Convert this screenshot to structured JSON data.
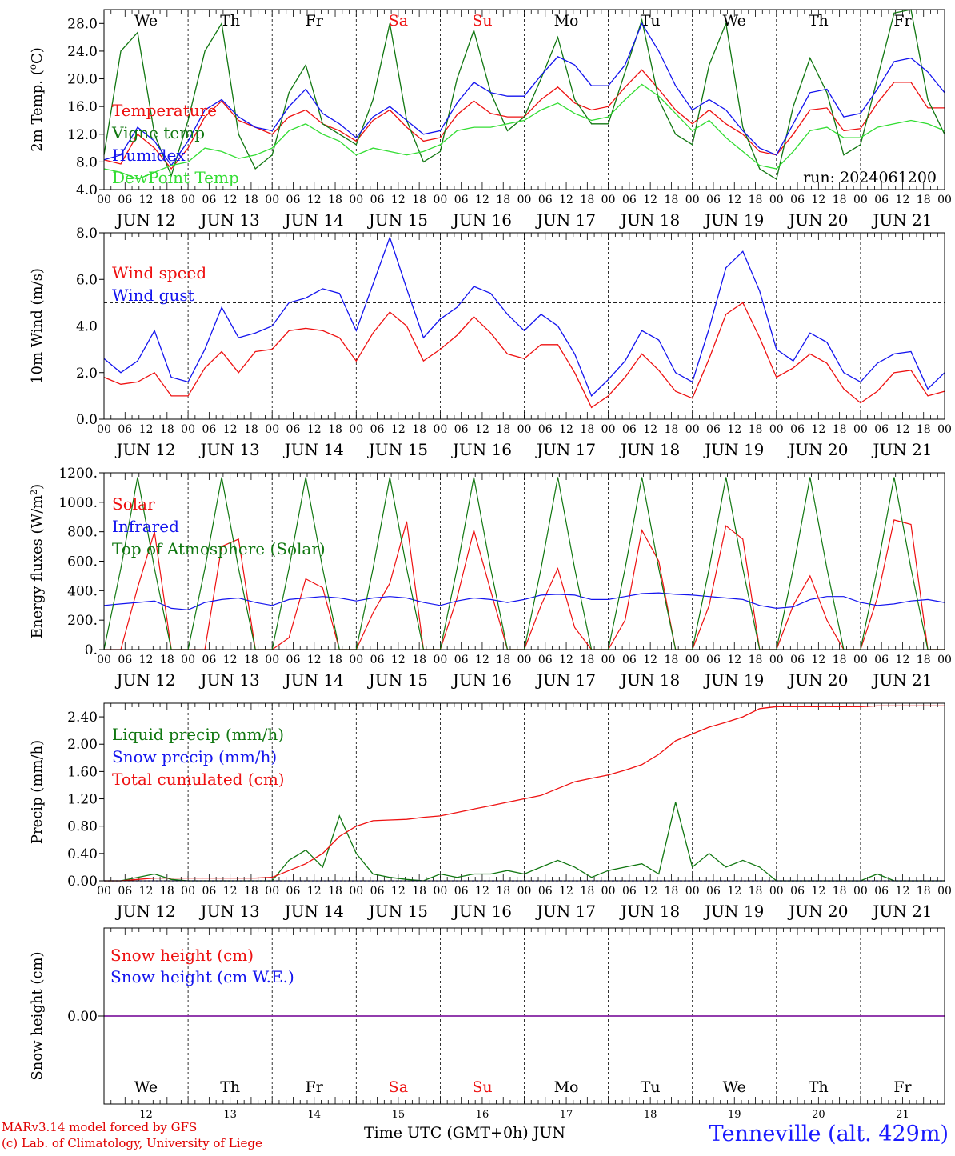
{
  "footer": {
    "model": "MARv3.14 model forced by GFS",
    "credit": "(c) Lab. of Climatology, University of Liege",
    "time_axis": "Time UTC (GMT+0h) JUN",
    "station": "Tenneville (alt. 429m)"
  },
  "day_abbrevs": [
    "We",
    "Th",
    "Fr",
    "Sa",
    "Su",
    "Mo",
    "Tu",
    "We",
    "Th",
    "Fr"
  ],
  "weekend_days": [
    3,
    4
  ],
  "date_labels": [
    "JUN 12",
    "JUN 13",
    "JUN 14",
    "JUN 15",
    "JUN 16",
    "JUN 17",
    "JUN 18",
    "JUN 19",
    "JUN 20",
    "JUN 21"
  ],
  "day_numbers": [
    "12",
    "13",
    "14",
    "15",
    "16",
    "17",
    "18",
    "19",
    "20",
    "21"
  ],
  "hour_ticks": [
    "00",
    "06",
    "12",
    "18"
  ],
  "colors": {
    "red": "#ee1111",
    "blue": "#1414ee",
    "green": "#117711",
    "light_green": "#33dd33",
    "purple": "#8b2fa8"
  },
  "chart_data": [
    {
      "type": "line",
      "ylabel": "2m Temp. (°C)",
      "ylim": [
        4,
        30
      ],
      "yticks": [
        "28.0",
        "24.0",
        "20.0",
        "16.0",
        "12.0",
        "8.0",
        "4.0"
      ],
      "annotation": "run: 2024061200",
      "x_hours_step": 6,
      "series": [
        {
          "name": "Temperature",
          "color": "#ee1111",
          "values": [
            8.3,
            7.7,
            12.0,
            10.0,
            7.0,
            10.0,
            14.5,
            16.8,
            14.0,
            13.0,
            12.0,
            14.5,
            15.5,
            13.5,
            12.5,
            11.0,
            14.0,
            15.5,
            13.0,
            11.0,
            11.5,
            14.8,
            16.8,
            15.0,
            14.5,
            14.5,
            17.0,
            18.8,
            16.5,
            15.5,
            16.0,
            18.8,
            21.3,
            18.5,
            15.5,
            13.5,
            15.5,
            13.5,
            12.0,
            9.5,
            9.0,
            12.0,
            15.5,
            15.8,
            12.5,
            12.8,
            16.5,
            19.5,
            19.5,
            15.8,
            15.8
          ]
        },
        {
          "name": "Vigne temp",
          "color": "#117711",
          "values": [
            9.0,
            24.0,
            26.7,
            12.0,
            6.0,
            14.0,
            24.0,
            28.0,
            12.0,
            7.0,
            9.0,
            18.0,
            22.0,
            13.5,
            12.0,
            10.5,
            17.0,
            28.0,
            14.0,
            8.0,
            9.5,
            20.0,
            27.0,
            18.0,
            12.5,
            14.5,
            20.0,
            26.0,
            17.0,
            13.5,
            13.5,
            21.0,
            28.5,
            17.0,
            12.0,
            10.5,
            22.0,
            28.0,
            13.0,
            7.0,
            5.5,
            16.0,
            23.0,
            18.0,
            9.0,
            10.5,
            20.0,
            29.5,
            30.0,
            17.0,
            12.0
          ]
        },
        {
          "name": "Humidex",
          "color": "#1414ee",
          "values": [
            8.3,
            9.0,
            13.0,
            11.0,
            7.5,
            11.0,
            15.5,
            17.0,
            14.5,
            13.0,
            12.5,
            16.0,
            18.5,
            15.0,
            13.5,
            11.5,
            14.5,
            16.0,
            14.0,
            12.0,
            12.5,
            16.5,
            19.5,
            18.0,
            17.5,
            17.5,
            20.5,
            23.2,
            22.0,
            19.0,
            19.0,
            22.0,
            28.0,
            24.0,
            19.0,
            15.5,
            17.0,
            15.5,
            12.5,
            10.0,
            9.0,
            13.5,
            18.0,
            18.5,
            14.5,
            15.0,
            18.5,
            22.5,
            23.0,
            21.0,
            18.0
          ]
        },
        {
          "name": "DewPoint Temp",
          "color": "#33dd33",
          "values": [
            7.0,
            6.5,
            5.5,
            6.5,
            7.5,
            8.0,
            10.0,
            9.5,
            8.5,
            9.0,
            10.0,
            12.5,
            13.5,
            12.0,
            11.0,
            9.0,
            10.0,
            9.5,
            9.0,
            9.5,
            10.5,
            12.5,
            13.0,
            13.0,
            13.5,
            14.0,
            15.5,
            16.5,
            15.0,
            14.0,
            14.5,
            17.0,
            19.2,
            17.5,
            15.0,
            12.5,
            14.0,
            11.5,
            9.5,
            7.5,
            7.0,
            9.5,
            12.5,
            13.0,
            11.5,
            11.5,
            13.0,
            13.5,
            14.0,
            13.5,
            12.5
          ]
        }
      ]
    },
    {
      "type": "line",
      "ylabel": "10m Wind (m/s)",
      "ylim": [
        0,
        8
      ],
      "yticks": [
        "8.0",
        "6.0",
        "4.0",
        "2.0",
        "0.0"
      ],
      "reference_line": 5,
      "x_hours_step": 6,
      "series": [
        {
          "name": "Wind speed",
          "color": "#ee1111",
          "values": [
            1.8,
            1.5,
            1.6,
            2.0,
            1.0,
            1.0,
            2.2,
            2.9,
            2.0,
            2.9,
            3.0,
            3.8,
            3.9,
            3.8,
            3.5,
            2.5,
            3.7,
            4.6,
            4.0,
            2.5,
            3.0,
            3.6,
            4.4,
            3.7,
            2.8,
            2.6,
            3.2,
            3.2,
            2.0,
            0.5,
            1.0,
            1.8,
            2.8,
            2.1,
            1.2,
            0.9,
            2.6,
            4.5,
            5.0,
            3.5,
            1.8,
            2.2,
            2.8,
            2.4,
            1.3,
            0.7,
            1.2,
            2.0,
            2.1,
            1.0,
            1.2
          ]
        },
        {
          "name": "Wind gust",
          "color": "#1414ee",
          "values": [
            2.6,
            2.0,
            2.5,
            3.8,
            1.8,
            1.6,
            3.0,
            4.8,
            3.5,
            3.7,
            4.0,
            5.0,
            5.2,
            5.6,
            5.4,
            3.8,
            5.8,
            7.8,
            5.6,
            3.5,
            4.3,
            4.8,
            5.7,
            5.4,
            4.5,
            3.8,
            4.5,
            4.0,
            2.8,
            1.0,
            1.7,
            2.5,
            3.8,
            3.4,
            2.0,
            1.6,
            3.9,
            6.5,
            7.2,
            5.5,
            3.0,
            2.5,
            3.7,
            3.3,
            2.0,
            1.6,
            2.4,
            2.8,
            2.9,
            1.3,
            2.0
          ]
        }
      ]
    },
    {
      "type": "line",
      "ylabel": "Energy fluxes (W/m²)",
      "ylim": [
        0,
        1200
      ],
      "yticks": [
        "1200.",
        "1000.",
        "800.",
        "600.",
        "400.",
        "200.",
        "0."
      ],
      "x_hours_step": 6,
      "series": [
        {
          "name": "Solar",
          "color": "#ee1111",
          "values": [
            0,
            0,
            420,
            800,
            0,
            0,
            0,
            700,
            750,
            0,
            0,
            80,
            480,
            420,
            0,
            0,
            250,
            450,
            870,
            0,
            0,
            350,
            810,
            400,
            0,
            0,
            300,
            550,
            150,
            0,
            0,
            200,
            810,
            600,
            0,
            0,
            300,
            840,
            750,
            0,
            0,
            300,
            500,
            200,
            0,
            0,
            350,
            880,
            850,
            0,
            0
          ]
        },
        {
          "name": "Infrared",
          "color": "#1414ee",
          "values": [
            300,
            310,
            320,
            330,
            280,
            270,
            320,
            340,
            350,
            320,
            300,
            340,
            350,
            360,
            350,
            330,
            350,
            360,
            350,
            320,
            300,
            330,
            350,
            340,
            320,
            340,
            370,
            375,
            370,
            340,
            340,
            360,
            380,
            385,
            375,
            370,
            360,
            350,
            340,
            300,
            280,
            290,
            340,
            360,
            360,
            320,
            300,
            310,
            330,
            340,
            320
          ]
        },
        {
          "name": "Top of Atmosphere (Solar)",
          "color": "#117711",
          "values": [
            0,
            550,
            1170,
            550,
            0,
            0,
            550,
            1170,
            550,
            0,
            0,
            550,
            1170,
            550,
            0,
            0,
            550,
            1170,
            550,
            0,
            0,
            550,
            1170,
            550,
            0,
            0,
            550,
            1170,
            550,
            0,
            0,
            550,
            1170,
            550,
            0,
            0,
            550,
            1170,
            550,
            0,
            0,
            550,
            1170,
            550,
            0,
            0,
            550,
            1170,
            550,
            0,
            0
          ]
        }
      ]
    },
    {
      "type": "line",
      "ylabel": "Precip (mm/h)",
      "ylim": [
        0,
        2.6
      ],
      "yticks": [
        "2.40",
        "2.00",
        "1.60",
        "1.20",
        "0.80",
        "0.40",
        "0.00"
      ],
      "x_hours_step": 6,
      "series": [
        {
          "name": "Liquid precip (mm/h)",
          "color": "#117711",
          "values": [
            0,
            0,
            0.05,
            0.1,
            0.02,
            0,
            0,
            0,
            0,
            0,
            0,
            0.3,
            0.45,
            0.2,
            0.95,
            0.4,
            0.1,
            0.05,
            0.02,
            0,
            0.1,
            0.05,
            0.1,
            0.1,
            0.15,
            0.1,
            0.2,
            0.3,
            0.2,
            0.05,
            0.15,
            0.2,
            0.25,
            0.1,
            1.15,
            0.2,
            0.4,
            0.2,
            0.3,
            0.2,
            0,
            0,
            0,
            0,
            0,
            0,
            0.1,
            0,
            0,
            0,
            0
          ]
        },
        {
          "name": "Snow precip (mm/h)",
          "color": "#1414ee",
          "values": [
            0,
            0,
            0,
            0,
            0,
            0,
            0,
            0,
            0,
            0,
            0,
            0,
            0,
            0,
            0,
            0,
            0,
            0,
            0,
            0,
            0,
            0,
            0,
            0,
            0,
            0,
            0,
            0,
            0,
            0,
            0,
            0,
            0,
            0,
            0,
            0,
            0,
            0,
            0,
            0,
            0,
            0,
            0,
            0,
            0,
            0,
            0,
            0,
            0,
            0,
            0
          ]
        },
        {
          "name": "Total cumulated (cm)",
          "color": "#ee1111",
          "values": [
            0,
            0,
            0.02,
            0.04,
            0.04,
            0.04,
            0.04,
            0.04,
            0.04,
            0.04,
            0.05,
            0.15,
            0.25,
            0.4,
            0.65,
            0.8,
            0.88,
            0.89,
            0.9,
            0.93,
            0.95,
            1.0,
            1.05,
            1.1,
            1.15,
            1.2,
            1.25,
            1.35,
            1.45,
            1.5,
            1.55,
            1.62,
            1.7,
            1.85,
            2.05,
            2.15,
            2.25,
            2.32,
            2.4,
            2.52,
            2.55,
            2.55,
            2.55,
            2.55,
            2.55,
            2.55,
            2.56,
            2.56,
            2.56,
            2.56,
            2.56
          ]
        }
      ]
    },
    {
      "type": "line",
      "ylabel": "Snow height (cm)",
      "ylim": [
        -1,
        1
      ],
      "yticks": [
        "0.00"
      ],
      "x_hours_step": 6,
      "series": [
        {
          "name": "Snow height (cm)",
          "color": "#ee1111",
          "values": [
            0,
            0,
            0,
            0,
            0,
            0,
            0,
            0,
            0,
            0,
            0,
            0,
            0,
            0,
            0,
            0,
            0,
            0,
            0,
            0,
            0,
            0,
            0,
            0,
            0,
            0,
            0,
            0,
            0,
            0,
            0,
            0,
            0,
            0,
            0,
            0,
            0,
            0,
            0,
            0,
            0,
            0,
            0,
            0,
            0,
            0,
            0,
            0,
            0,
            0,
            0
          ]
        },
        {
          "name": "Snow height (cm W.E.)",
          "color": "#1414ee",
          "values": [
            0,
            0,
            0,
            0,
            0,
            0,
            0,
            0,
            0,
            0,
            0,
            0,
            0,
            0,
            0,
            0,
            0,
            0,
            0,
            0,
            0,
            0,
            0,
            0,
            0,
            0,
            0,
            0,
            0,
            0,
            0,
            0,
            0,
            0,
            0,
            0,
            0,
            0,
            0,
            0,
            0,
            0,
            0,
            0,
            0,
            0,
            0,
            0,
            0,
            0,
            0
          ]
        }
      ]
    }
  ]
}
